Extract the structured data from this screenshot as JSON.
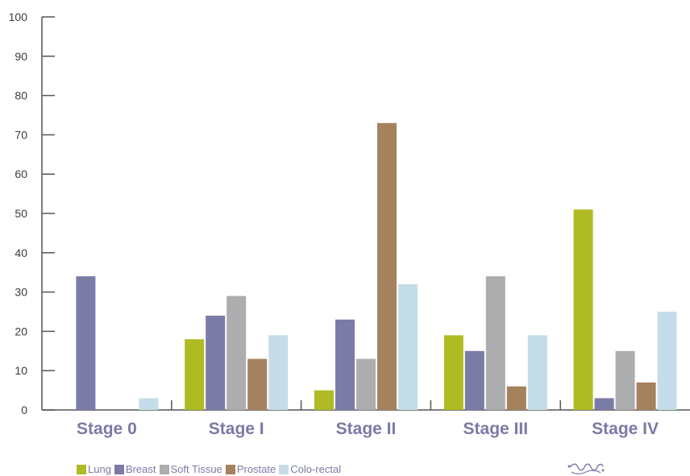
{
  "chart_data": {
    "type": "bar",
    "title": "",
    "xlabel": "",
    "ylabel": "",
    "ylim": [
      0,
      100
    ],
    "yticks": [
      0,
      10,
      20,
      30,
      40,
      50,
      60,
      70,
      80,
      90,
      100
    ],
    "categories": [
      "Stage 0",
      "Stage I",
      "Stage II",
      "Stage III",
      "Stage IV"
    ],
    "series": [
      {
        "name": "Lung",
        "color": "#afbb22",
        "values": [
          0,
          18,
          5,
          19,
          51
        ]
      },
      {
        "name": "Breast",
        "color": "#7a7ba6",
        "values": [
          34,
          24,
          23,
          15,
          3
        ]
      },
      {
        "name": "Soft Tissue",
        "color": "#adadb0",
        "values": [
          0,
          29,
          13,
          34,
          15
        ]
      },
      {
        "name": "Prostate",
        "color": "#a5825e",
        "values": [
          0,
          13,
          73,
          6,
          7
        ]
      },
      {
        "name": "Colo-rectal",
        "color": "#c4dde8",
        "values": [
          3,
          19,
          32,
          19,
          25
        ]
      }
    ],
    "legend_position": "bottom-left",
    "grid": false
  }
}
